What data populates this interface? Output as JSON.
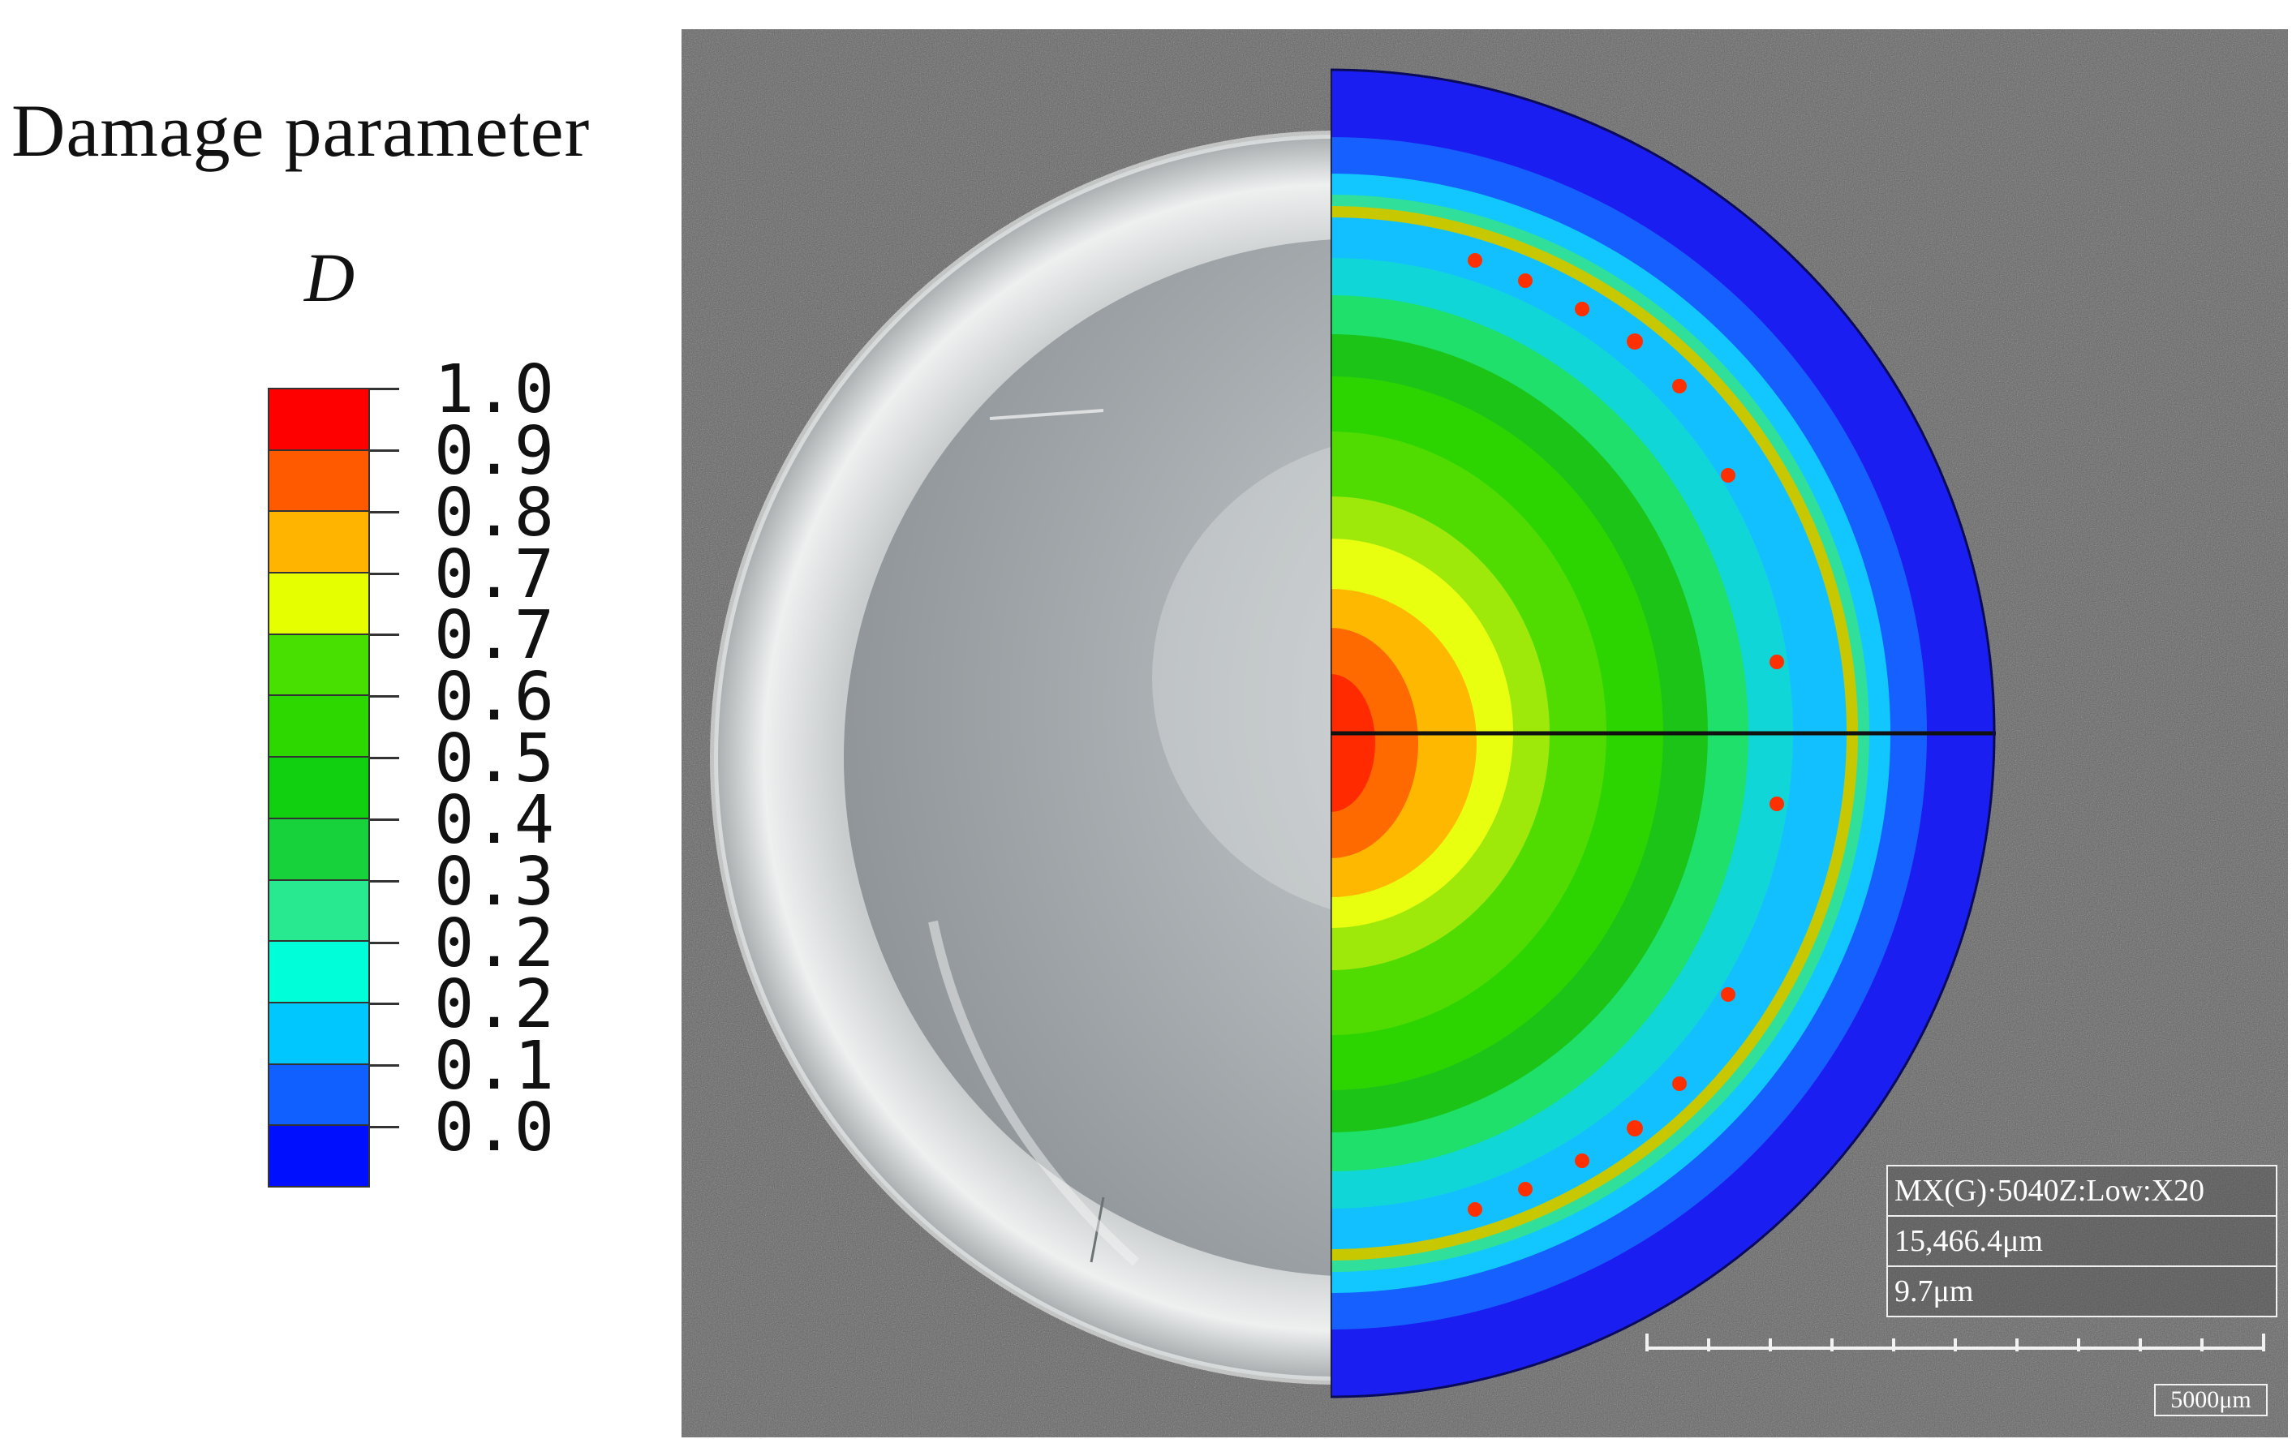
{
  "legend": {
    "title": "Damage parameter",
    "variable": "D",
    "bands": [
      "#ff0000",
      "#ff5a00",
      "#ffb400",
      "#e6ff00",
      "#48e000",
      "#2cd800",
      "#10d010",
      "#18d23c",
      "#28e890",
      "#00ffd8",
      "#00c8ff",
      "#1060ff",
      "#0010ff"
    ],
    "tick_labels": [
      "1.0",
      "0.9",
      "0.8",
      "0.7",
      "0.7",
      "0.6",
      "0.5",
      "0.4",
      "0.3",
      "0.2",
      "0.2",
      "0.1",
      "0.0"
    ]
  },
  "info": {
    "rows": [
      "MX(G)·5040Z:Low:X20",
      "15,466.4μm",
      "9.7μm"
    ],
    "scale_bar": "5000μm"
  },
  "colors": {
    "photo_background": "#5c5c5c",
    "contour_outer": "#1a1ef0"
  }
}
